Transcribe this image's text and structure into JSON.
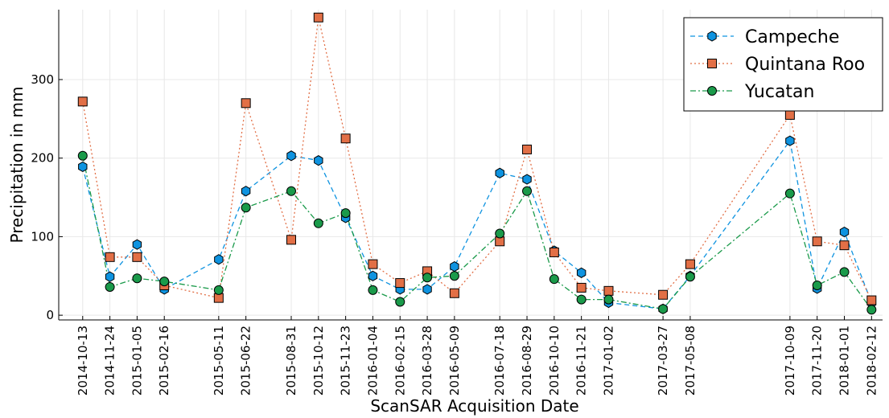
{
  "chart_data": {
    "type": "line",
    "x_label": "ScanSAR Acquisition Date",
    "y_label": "Precipitation in mm",
    "x": [
      "2014-10-13",
      "2014-11-24",
      "2015-01-05",
      "2015-02-16",
      "2015-05-11",
      "2015-06-22",
      "2015-08-31",
      "2015-10-12",
      "2015-11-23",
      "2016-01-04",
      "2016-02-15",
      "2016-03-28",
      "2016-05-09",
      "2016-07-18",
      "2016-08-29",
      "2016-10-10",
      "2016-11-21",
      "2017-01-02",
      "2017-03-27",
      "2017-05-08",
      "2017-10-09",
      "2017-11-20",
      "2018-01-01",
      "2018-02-12"
    ],
    "xlim": [
      "2014-09-06",
      "2018-03-01"
    ],
    "ylim": [
      -6,
      389
    ],
    "yticks": [
      0,
      100,
      200,
      300
    ],
    "grid": true,
    "legend": "top-right",
    "series": [
      {
        "name": "Campeche",
        "color": "#0e93e0",
        "marker": "hexagon",
        "linestyle": "dash",
        "values": [
          189,
          49,
          90,
          33,
          71,
          158,
          203,
          197,
          124,
          50,
          33,
          33,
          62,
          181,
          173,
          82,
          54,
          16,
          8,
          50,
          222,
          34,
          106,
          16
        ]
      },
      {
        "name": "Quintana Roo",
        "color": "#e26f46",
        "marker": "square",
        "linestyle": "dot",
        "values": [
          272,
          74,
          74,
          38,
          22,
          270,
          96,
          379,
          225,
          65,
          41,
          56,
          28,
          94,
          211,
          80,
          35,
          31,
          26,
          65,
          255,
          94,
          89,
          19
        ]
      },
      {
        "name": "Yucatan",
        "color": "#1a9a4a",
        "marker": "circle",
        "linestyle": "dashdot",
        "values": [
          203,
          36,
          47,
          43,
          32,
          137,
          158,
          117,
          130,
          32,
          17,
          48,
          50,
          104,
          158,
          46,
          20,
          20,
          8,
          49,
          155,
          38,
          55,
          7
        ]
      }
    ]
  }
}
